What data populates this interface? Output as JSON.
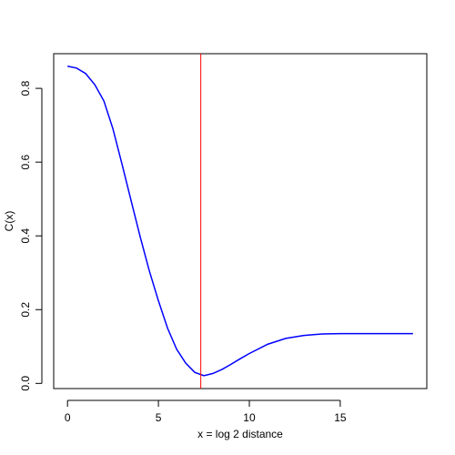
{
  "chart_data": {
    "type": "line",
    "x_label": "x = log 2 distance",
    "y_label": "C(x)",
    "x": [
      0,
      0.5,
      1,
      1.5,
      2,
      2.5,
      3,
      3.5,
      4,
      4.5,
      5,
      5.5,
      6,
      6.5,
      7,
      7.5,
      8,
      8.5,
      9,
      9.5,
      10,
      11,
      12,
      13,
      14,
      15,
      16,
      17,
      18,
      19
    ],
    "series": [
      {
        "color": "#0000ff",
        "values": [
          0.86,
          0.855,
          0.84,
          0.81,
          0.766,
          0.69,
          0.594,
          0.495,
          0.397,
          0.305,
          0.224,
          0.15,
          0.093,
          0.055,
          0.03,
          0.021,
          0.027,
          0.038,
          0.052,
          0.067,
          0.081,
          0.106,
          0.122,
          0.13,
          0.134,
          0.135,
          0.135,
          0.135,
          0.135,
          0.135
        ]
      }
    ],
    "vline": {
      "x": 7.33,
      "color": "#ff0000"
    },
    "xlim": [
      -0.76,
      19.76
    ],
    "xticks": [
      0,
      5,
      10,
      15
    ],
    "ylim": [
      -0.014,
      0.894
    ],
    "yticks": [
      {
        "value": 0,
        "label": "0.0"
      },
      0.2,
      0.4,
      0.6,
      0.8
    ]
  }
}
